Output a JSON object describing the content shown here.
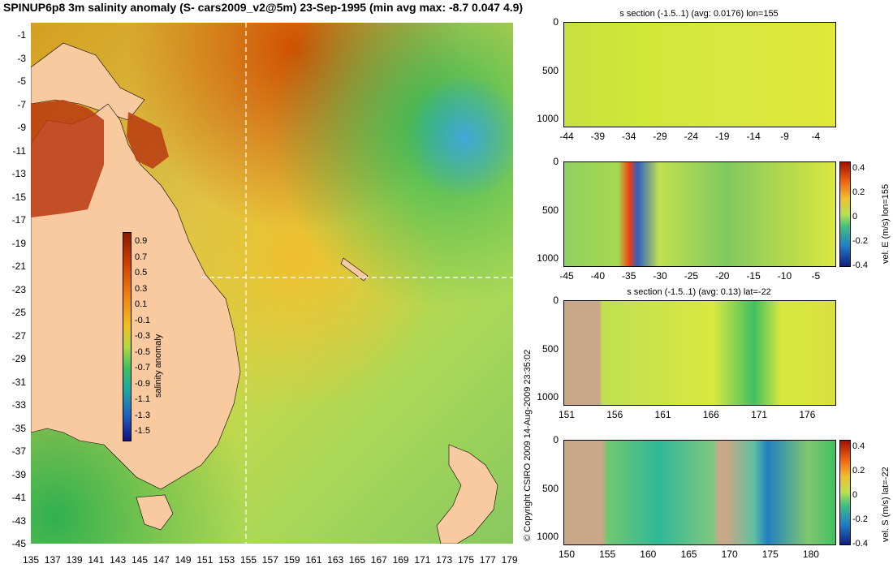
{
  "title": "SPINUP6p8 3m salinity anomaly (S- cars2009_v2@5m) 23-Sep-1995 (min avg max: -8.7 0.047 4.9)",
  "map": {
    "lat_ticks": [
      "-1",
      "-3",
      "-5",
      "-7",
      "-9",
      "-11",
      "-13",
      "-15",
      "-17",
      "-19",
      "-21",
      "-23",
      "-25",
      "-27",
      "-29",
      "-31",
      "-33",
      "-35",
      "-37",
      "-39",
      "-41",
      "-43",
      "-45"
    ],
    "lon_ticks": [
      "135",
      "137",
      "139",
      "141",
      "143",
      "145",
      "147",
      "149",
      "151",
      "153",
      "155",
      "157",
      "159",
      "161",
      "163",
      "165",
      "167",
      "169",
      "171",
      "173",
      "175",
      "177",
      "179"
    ],
    "section_lon": "155",
    "section_lat": "-22",
    "colorbar": {
      "label": "salinity anomaly",
      "ticks": [
        "0.9",
        "0.7",
        "0.5",
        "0.3",
        "0.1",
        "-0.1",
        "-0.3",
        "-0.5",
        "-0.7",
        "-0.9",
        "-1.1",
        "-1.3",
        "-1.5"
      ]
    }
  },
  "copyright": "© Copyright CSIRO 2009   14-Aug-2009 23:35:02",
  "panels": [
    {
      "title": "s section (-1.5..1) (avg: 0.0176) lon=155",
      "y_ticks": [
        "0",
        "500",
        "1000"
      ],
      "x_ticks": [
        "-44",
        "-39",
        "-34",
        "-29",
        "-24",
        "-19",
        "-14",
        "-9",
        "-4"
      ]
    },
    {
      "title": "",
      "y_ticks": [
        "0",
        "500",
        "1000"
      ],
      "x_ticks": [
        "-45",
        "-40",
        "-35",
        "-30",
        "-25",
        "-20",
        "-15",
        "-10",
        "-5"
      ],
      "colorbar_label": "vel. E (m/s) lon=155",
      "colorbar_ticks": [
        "0.4",
        "0.2",
        "0",
        "-0.2",
        "-0.4"
      ]
    },
    {
      "title": "s section (-1.5..1) (avg: 0.13) lat=-22",
      "y_ticks": [
        "0",
        "500",
        "1000"
      ],
      "x_ticks": [
        "151",
        "156",
        "161",
        "166",
        "171",
        "176"
      ]
    },
    {
      "title": "",
      "y_ticks": [
        "0",
        "500",
        "1000"
      ],
      "x_ticks": [
        "150",
        "155",
        "160",
        "165",
        "170",
        "175",
        "180"
      ],
      "colorbar_label": "vel. S (m/s) lat=-22",
      "colorbar_ticks": [
        "0.4",
        "0.2",
        "0",
        "-0.2",
        "-0.4"
      ]
    }
  ],
  "colors": {
    "land": "#f9c9a0",
    "section_land": "#c8a888",
    "high": "#a82a00",
    "low": "#1a9ad8",
    "neutral": "#d8e840"
  }
}
